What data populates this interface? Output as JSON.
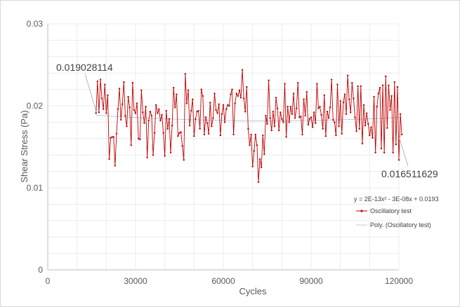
{
  "chart_data": {
    "type": "line",
    "title": "",
    "xlabel": "Cycles",
    "ylabel": "Shear Stress (Pa)",
    "xlim": [
      0,
      120000
    ],
    "ylim": [
      0,
      0.03
    ],
    "x_ticks": [
      0,
      30000,
      60000,
      90000,
      120000
    ],
    "x_tick_labels": [
      "0",
      "30000",
      "60000",
      "90000",
      "120000"
    ],
    "y_ticks": [
      0,
      0.01,
      0.02,
      0.03
    ],
    "y_tick_labels": [
      "0",
      "0.01",
      "0.02",
      "0.03"
    ],
    "grid": true,
    "legend_position": "right",
    "series_color": "#c00000",
    "trend_color": "#b8cce4",
    "series": [
      {
        "name": "Oscillatory test",
        "x_start": 16500,
        "x_step": 500,
        "values": [
          0.0191,
          0.023,
          0.0192,
          0.0232,
          0.0209,
          0.0196,
          0.0226,
          0.0191,
          0.0213,
          0.0135,
          0.0161,
          0.0162,
          0.0162,
          0.0127,
          0.0166,
          0.0196,
          0.0221,
          0.0183,
          0.0202,
          0.0229,
          0.0188,
          0.0175,
          0.0211,
          0.0198,
          0.0152,
          0.0228,
          0.0195,
          0.0191,
          0.0203,
          0.016,
          0.0159,
          0.0219,
          0.0192,
          0.0179,
          0.0199,
          0.0137,
          0.0182,
          0.0193,
          0.0188,
          0.014,
          0.0167,
          0.0201,
          0.0191,
          0.0196,
          0.0182,
          0.0189,
          0.0167,
          0.0139,
          0.0194,
          0.0172,
          0.0184,
          0.0143,
          0.0176,
          0.0222,
          0.0198,
          0.0214,
          0.0163,
          0.0167,
          0.0168,
          0.0151,
          0.0134,
          0.0239,
          0.0203,
          0.0219,
          0.0176,
          0.0194,
          0.0208,
          0.0163,
          0.0184,
          0.0193,
          0.0194,
          0.0172,
          0.022,
          0.0212,
          0.0165,
          0.0186,
          0.0179,
          0.0166,
          0.0204,
          0.0175,
          0.0185,
          0.0215,
          0.0195,
          0.0191,
          0.0202,
          0.0164,
          0.019,
          0.0201,
          0.018,
          0.0196,
          0.0201,
          0.02,
          0.0214,
          0.022,
          0.0165,
          0.0203,
          0.0215,
          0.0212,
          0.0219,
          0.021,
          0.0244,
          0.0209,
          0.0193,
          0.0223,
          0.0172,
          0.0152,
          0.0165,
          0.0126,
          0.0145,
          0.0165,
          0.0152,
          0.0107,
          0.0135,
          0.0125,
          0.0164,
          0.0141,
          0.0188,
          0.0178,
          0.0231,
          0.0185,
          0.017,
          0.0193,
          0.0175,
          0.021,
          0.0197,
          0.017,
          0.0192,
          0.0184,
          0.018,
          0.0227,
          0.0162,
          0.0199,
          0.018,
          0.0199,
          0.019,
          0.0215,
          0.0185,
          0.0197,
          0.0228,
          0.0186,
          0.0187,
          0.0165,
          0.0208,
          0.0188,
          0.0217,
          0.0177,
          0.0184,
          0.0186,
          0.0174,
          0.0192,
          0.0179,
          0.0227,
          0.0197,
          0.0199,
          0.0189,
          0.0172,
          0.0213,
          0.0163,
          0.0193,
          0.0185,
          0.0198,
          0.0232,
          0.0183,
          0.018,
          0.0164,
          0.0226,
          0.0175,
          0.0206,
          0.0166,
          0.0204,
          0.0214,
          0.019,
          0.0237,
          0.0208,
          0.0192,
          0.0228,
          0.0209,
          0.0186,
          0.0169,
          0.0224,
          0.0172,
          0.0224,
          0.0154,
          0.0201,
          0.0176,
          0.0191,
          0.0178,
          0.0164,
          0.0174,
          0.0161,
          0.0211,
          0.0143,
          0.0199,
          0.0215,
          0.0222,
          0.0148,
          0.0225,
          0.0143,
          0.0236,
          0.0173,
          0.0225,
          0.0195,
          0.0212,
          0.0143,
          0.0229,
          0.0153,
          0.0223,
          0.0134,
          0.019,
          0.0165
        ]
      },
      {
        "name": "Poly. (Oscillatory test)",
        "equation_coefficients": [
          2e-13,
          -3e-08,
          0.0193
        ]
      }
    ],
    "trendline_equation": "y = 2E-13x² - 3E-08x + 0.0193",
    "annotations": [
      {
        "text": "0.019028114",
        "x": 16500,
        "y": 0.019028114
      },
      {
        "text": "0.016511629",
        "x": 120000,
        "y": 0.016511629
      }
    ]
  }
}
